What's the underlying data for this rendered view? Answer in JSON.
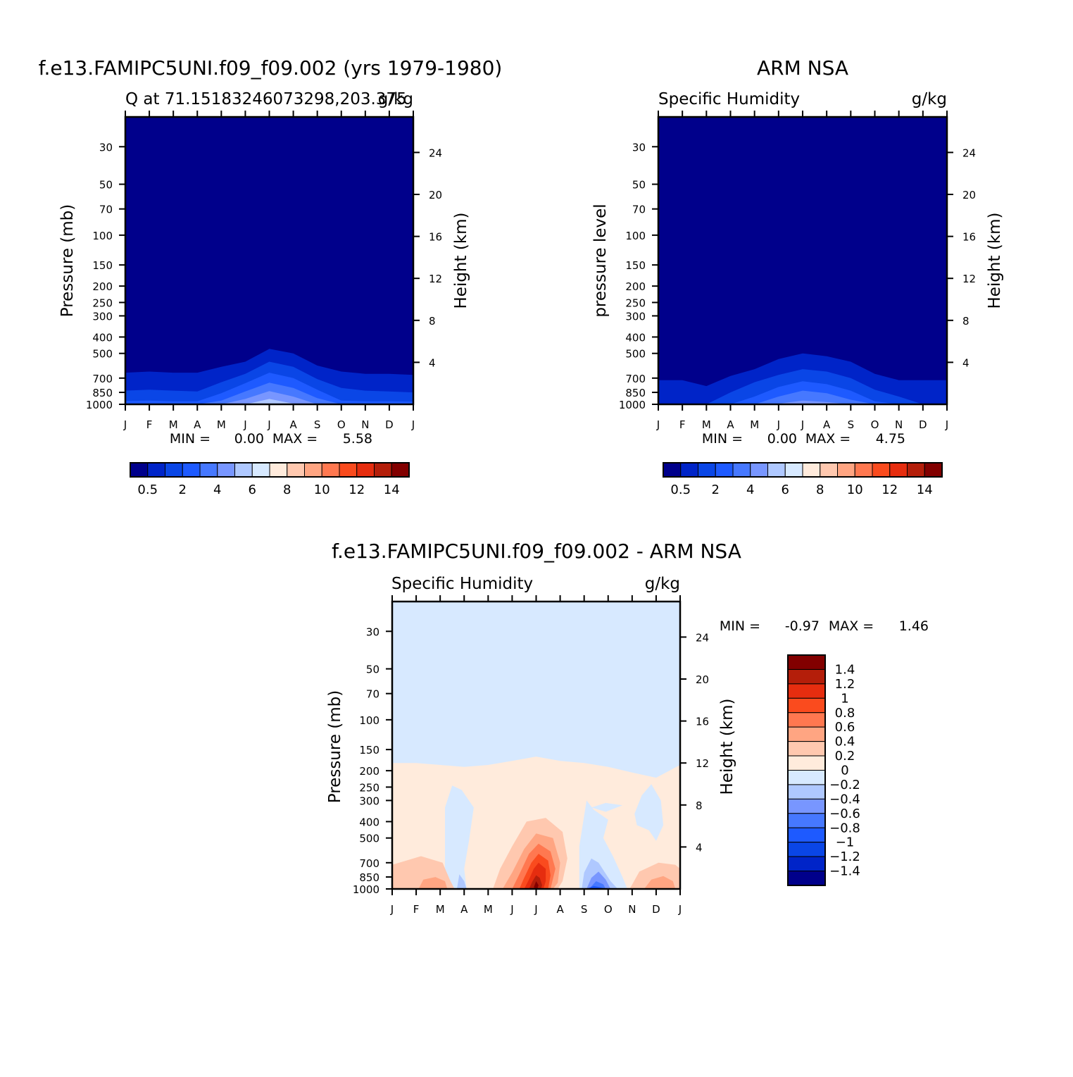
{
  "chart_data": [
    {
      "type": "heatmap",
      "title": "f.e13.FAMIPC5UNI.f09_f09.002 (yrs 1979-1980)",
      "subtitle_left": "Q at 71.15183246073298,203.375",
      "subtitle_right": "g/kg",
      "ylabel": "Pressure (mb)",
      "ylabel_right": "Height (km)",
      "x_ticks": [
        "J",
        "F",
        "M",
        "A",
        "M",
        "J",
        "J",
        "A",
        "S",
        "O",
        "N",
        "D",
        "J"
      ],
      "pressure_ticks": [
        30,
        50,
        70,
        100,
        150,
        200,
        250,
        300,
        400,
        500,
        700,
        850,
        1000
      ],
      "height_ticks": [
        24,
        20,
        16,
        12,
        8,
        4
      ],
      "min_label": "MIN =",
      "min_value": "0.00",
      "max_label": "MAX =",
      "max_value": "5.58",
      "colorbar_labels": [
        "0.5",
        "2",
        "4",
        "6",
        "8",
        "10",
        "12",
        "14"
      ],
      "colorbar_colors": [
        "#00008b",
        "#0024c8",
        "#0a46e6",
        "#1e5aff",
        "#4678ff",
        "#7896ff",
        "#afc8ff",
        "#d7e9ff",
        "#ffebdc",
        "#ffc8af",
        "#ffa582",
        "#ff7850",
        "#fa4b1e",
        "#e62d0f",
        "#b41e0a",
        "#820000"
      ],
      "contour_boundaries": {
        "x": [
          0,
          1,
          2,
          3,
          4,
          5,
          6,
          7,
          8,
          9,
          10,
          11,
          12
        ],
        "levels": [
          {
            "level": 0.5,
            "pressure": [
              650,
              640,
              650,
              650,
              600,
              560,
              470,
              500,
              590,
              640,
              660,
              660,
              670
            ]
          },
          {
            "level": 1,
            "pressure": [
              830,
              820,
              830,
              840,
              740,
              660,
              560,
              600,
              710,
              800,
              830,
              840,
              850
            ]
          },
          {
            "level": 2,
            "pressure": [
              955,
              950,
              960,
              960,
              860,
              750,
              650,
              700,
              820,
              950,
              960,
              960,
              965
            ]
          },
          {
            "level": 3,
            "pressure": [
              1000,
              1000,
              1000,
              1000,
              950,
              840,
              745,
              800,
              920,
              1000,
              1000,
              1000,
              1000
            ]
          },
          {
            "level": 4,
            "pressure": [
              1000,
              1000,
              1000,
              1000,
              1000,
              930,
              835,
              900,
              1000,
              1000,
              1000,
              1000,
              1000
            ]
          },
          {
            "level": 5,
            "pressure": [
              1000,
              1000,
              1000,
              1000,
              1000,
              1000,
              930,
              990,
              1000,
              1000,
              1000,
              1000,
              1000
            ]
          }
        ]
      }
    },
    {
      "type": "heatmap",
      "title": "ARM NSA",
      "subtitle_left": "Specific Humidity",
      "subtitle_right": "g/kg",
      "ylabel": "pressure level",
      "ylabel_right": "Height (km)",
      "x_ticks": [
        "J",
        "F",
        "M",
        "A",
        "M",
        "J",
        "J",
        "A",
        "S",
        "O",
        "N",
        "D",
        "J"
      ],
      "pressure_ticks": [
        30,
        50,
        70,
        100,
        150,
        200,
        250,
        300,
        400,
        500,
        700,
        850,
        1000
      ],
      "height_ticks": [
        24,
        20,
        16,
        12,
        8,
        4
      ],
      "min_label": "MIN =",
      "min_value": "0.00",
      "max_label": "MAX =",
      "max_value": "4.75",
      "colorbar_labels": [
        "0.5",
        "2",
        "4",
        "6",
        "8",
        "10",
        "12",
        "14"
      ],
      "colorbar_colors": [
        "#00008b",
        "#0024c8",
        "#0a46e6",
        "#1e5aff",
        "#4678ff",
        "#7896ff",
        "#afc8ff",
        "#d7e9ff",
        "#ffebdc",
        "#ffc8af",
        "#ffa582",
        "#ff7850",
        "#fa4b1e",
        "#e62d0f",
        "#b41e0a",
        "#820000"
      ],
      "contour_boundaries": {
        "x": [
          0,
          1,
          2,
          3,
          4,
          5,
          6,
          7,
          8,
          9,
          10,
          11,
          12
        ],
        "levels": [
          {
            "level": 0.5,
            "pressure": [
              720,
              720,
              780,
              680,
              620,
              540,
              500,
              520,
              560,
              660,
              720,
              720,
              720
            ]
          },
          {
            "level": 1,
            "pressure": [
              1000,
              1000,
              1000,
              850,
              740,
              670,
              620,
              640,
              700,
              820,
              900,
              1000,
              1000
            ]
          },
          {
            "level": 2,
            "pressure": [
              1000,
              1000,
              1000,
              1000,
              900,
              790,
              730,
              760,
              830,
              960,
              1000,
              1000,
              1000
            ]
          },
          {
            "level": 3,
            "pressure": [
              1000,
              1000,
              1000,
              1000,
              1000,
              900,
              830,
              860,
              940,
              1000,
              1000,
              1000,
              1000
            ]
          },
          {
            "level": 4,
            "pressure": [
              1000,
              1000,
              1000,
              1000,
              1000,
              990,
              950,
              970,
              1000,
              1000,
              1000,
              1000,
              1000
            ]
          }
        ]
      }
    },
    {
      "type": "heatmap",
      "title": "f.e13.FAMIPC5UNI.f09_f09.002 - ARM NSA",
      "subtitle_left": "Specific Humidity",
      "subtitle_right": "g/kg",
      "ylabel": "Pressure (mb)",
      "ylabel_right": "Height (km)",
      "x_ticks": [
        "J",
        "F",
        "M",
        "A",
        "M",
        "J",
        "J",
        "A",
        "S",
        "O",
        "N",
        "D",
        "J"
      ],
      "pressure_ticks": [
        30,
        50,
        70,
        100,
        150,
        200,
        250,
        300,
        400,
        500,
        700,
        850,
        1000
      ],
      "height_ticks": [
        24,
        20,
        16,
        12,
        8,
        4
      ],
      "min_label": "MIN =",
      "min_value": "-0.97",
      "max_label": "MAX =",
      "max_value": "1.46",
      "colorbar_labels": [
        "1.4",
        "1.2",
        "1",
        "0.8",
        "0.6",
        "0.4",
        "0.2",
        "0",
        "-0.2",
        "-0.4",
        "-0.6",
        "-0.8",
        "-1",
        "-1.2",
        "-1.4"
      ],
      "colorbar_colors": [
        "#820000",
        "#b41e0a",
        "#e62d0f",
        "#fa4b1e",
        "#ff7850",
        "#ffa582",
        "#ffc8af",
        "#ffebdc",
        "#d7e9ff",
        "#afc8ff",
        "#7896ff",
        "#4678ff",
        "#1e5aff",
        "#0a46e6",
        "#0024c8",
        "#00008b"
      ],
      "zero_contour_pressure": {
        "x": [
          0,
          1,
          2,
          3,
          4,
          5,
          6,
          7,
          8,
          9,
          10,
          11,
          12
        ],
        "pressure": [
          180,
          180,
          185,
          190,
          185,
          175,
          165,
          175,
          180,
          190,
          205,
          220,
          185
        ]
      }
    }
  ]
}
